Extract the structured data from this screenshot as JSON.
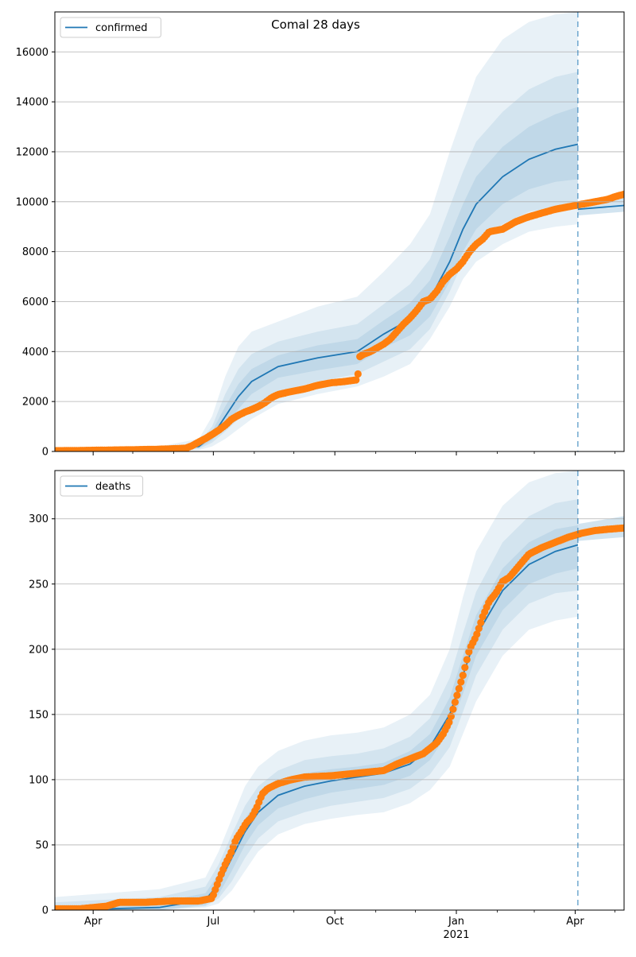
{
  "title": "Comal 28 days",
  "colors": {
    "model": "#1f77b4",
    "observed": "#ff7f0e",
    "band": "#1f77b4",
    "grid": "#b0b0b0",
    "forecast_line": "#1f77b4"
  },
  "x_axis": {
    "range_days": [
      -19,
      412
    ],
    "ticks": [
      {
        "day": 10,
        "label": "Apr",
        "sublabel": ""
      },
      {
        "day": 101,
        "label": "Jul",
        "sublabel": ""
      },
      {
        "day": 193,
        "label": "Oct",
        "sublabel": ""
      },
      {
        "day": 285,
        "label": "Jan",
        "sublabel": "2021"
      },
      {
        "day": 375,
        "label": "Apr",
        "sublabel": ""
      }
    ],
    "minor_ticks": [
      40,
      71,
      132,
      162,
      224,
      254,
      316,
      344,
      405
    ]
  },
  "chart_data": [
    {
      "type": "line",
      "series": [
        {
          "name": "confirmed"
        }
      ],
      "legend_position": "upper left",
      "grid": "horizontal",
      "ylim": [
        0,
        17600
      ],
      "yticks": [
        0,
        2000,
        4000,
        6000,
        8000,
        10000,
        12000,
        14000,
        16000
      ],
      "forecast_start_day": 377,
      "model_end_day": 377,
      "model": {
        "x": [
          -19,
          60,
          90,
          100,
          110,
          120,
          130,
          150,
          180,
          210,
          230,
          250,
          265,
          280,
          290,
          300,
          320,
          340,
          360,
          377
        ],
        "y": [
          60,
          70,
          200,
          600,
          1400,
          2200,
          2800,
          3400,
          3750,
          4000,
          4700,
          5300,
          6100,
          7600,
          8900,
          9900,
          11000,
          11700,
          12100,
          12300
        ]
      },
      "bands": [
        {
          "x": [
            -19,
            60,
            90,
            100,
            110,
            120,
            130,
            150,
            180,
            210,
            230,
            250,
            265,
            280,
            290,
            300,
            320,
            340,
            360,
            377
          ],
          "upper": [
            150,
            200,
            500,
            1400,
            3000,
            4200,
            4800,
            5200,
            5800,
            6200,
            7200,
            8300,
            9500,
            12000,
            13500,
            15000,
            16500,
            17200,
            17500,
            17600
          ],
          "lower": [
            0,
            0,
            50,
            200,
            500,
            900,
            1300,
            1900,
            2300,
            2600,
            3000,
            3500,
            4500,
            5800,
            6900,
            7600,
            8300,
            8800,
            9000,
            9100
          ]
        },
        {
          "x": [
            -19,
            60,
            90,
            100,
            110,
            120,
            130,
            150,
            180,
            210,
            230,
            250,
            265,
            280,
            290,
            300,
            320,
            340,
            360,
            377
          ],
          "upper": [
            110,
            140,
            350,
            1000,
            2300,
            3300,
            3900,
            4400,
            4800,
            5100,
            5900,
            6700,
            7700,
            9800,
            11200,
            12400,
            13600,
            14500,
            15000,
            15200
          ],
          "lower": [
            20,
            20,
            100,
            350,
            800,
            1300,
            1800,
            2400,
            2800,
            3100,
            3600,
            4100,
            4900,
            6400,
            7600,
            8400,
            9100,
            9600,
            9800,
            9900
          ]
        },
        {
          "x": [
            -19,
            60,
            90,
            100,
            110,
            120,
            130,
            150,
            180,
            210,
            230,
            250,
            265,
            280,
            290,
            300,
            320,
            340,
            360,
            377
          ],
          "upper": [
            85,
            100,
            270,
            800,
            1800,
            2700,
            3300,
            3850,
            4250,
            4500,
            5250,
            5950,
            6850,
            8600,
            9900,
            11000,
            12200,
            13000,
            13500,
            13800
          ],
          "lower": [
            40,
            40,
            140,
            450,
            1050,
            1700,
            2300,
            2950,
            3250,
            3500,
            4150,
            4650,
            5400,
            6800,
            8000,
            8900,
            9900,
            10500,
            10800,
            10900
          ]
        }
      ],
      "extension": {
        "x": [
          377,
          412
        ],
        "y": [
          9700,
          9850
        ],
        "upper": [
          9950,
          10250
        ],
        "lower": [
          9450,
          9600
        ]
      },
      "observed": {
        "x": [
          -19,
          0,
          20,
          40,
          60,
          80,
          85,
          90,
          95,
          100,
          105,
          110,
          115,
          120,
          125,
          130,
          135,
          140,
          145,
          150,
          160,
          170,
          180,
          190,
          200,
          210,
          212,
          215,
          220,
          225,
          230,
          235,
          240,
          245,
          250,
          255,
          260,
          265,
          270,
          275,
          280,
          285,
          290,
          295,
          300,
          305,
          310,
          315,
          320,
          330,
          340,
          350,
          360,
          370,
          380,
          390,
          400,
          405,
          412
        ],
        "y": [
          30,
          40,
          55,
          70,
          90,
          130,
          230,
          380,
          520,
          680,
          850,
          1050,
          1300,
          1450,
          1580,
          1680,
          1800,
          1950,
          2150,
          2280,
          2400,
          2500,
          2650,
          2750,
          2800,
          2870,
          3800,
          3900,
          4000,
          4150,
          4300,
          4500,
          4800,
          5100,
          5350,
          5650,
          6000,
          6100,
          6400,
          6800,
          7100,
          7300,
          7600,
          8000,
          8300,
          8500,
          8800,
          8850,
          8900,
          9200,
          9400,
          9550,
          9700,
          9800,
          9900,
          10000,
          10100,
          10200,
          10300
        ]
      }
    },
    {
      "type": "line",
      "series": [
        {
          "name": "deaths"
        }
      ],
      "legend_position": "upper left",
      "grid": "horizontal",
      "ylim": [
        0,
        337
      ],
      "yticks": [
        0,
        50,
        100,
        150,
        200,
        250,
        300
      ],
      "forecast_start_day": 377,
      "model_end_day": 377,
      "model": {
        "x": [
          -19,
          60,
          95,
          105,
          115,
          125,
          135,
          150,
          170,
          190,
          210,
          230,
          250,
          265,
          280,
          290,
          300,
          320,
          340,
          360,
          377
        ],
        "y": [
          0,
          2,
          8,
          20,
          40,
          60,
          75,
          88,
          95,
          99,
          102,
          105,
          112,
          125,
          150,
          180,
          210,
          245,
          265,
          275,
          280
        ]
      },
      "bands": [
        {
          "x": [
            -19,
            60,
            95,
            105,
            115,
            125,
            135,
            150,
            170,
            190,
            210,
            230,
            250,
            265,
            280,
            290,
            300,
            320,
            340,
            360,
            377
          ],
          "upper": [
            10,
            16,
            25,
            45,
            70,
            95,
            110,
            122,
            130,
            134,
            136,
            140,
            150,
            165,
            200,
            240,
            275,
            310,
            328,
            335,
            337
          ],
          "lower": [
            0,
            0,
            2,
            5,
            15,
            30,
            45,
            58,
            66,
            70,
            73,
            75,
            82,
            92,
            110,
            135,
            160,
            195,
            215,
            222,
            225
          ]
        },
        {
          "x": [
            -19,
            60,
            95,
            105,
            115,
            125,
            135,
            150,
            170,
            190,
            210,
            230,
            250,
            265,
            280,
            290,
            300,
            320,
            340,
            360,
            377
          ],
          "upper": [
            6,
            10,
            18,
            35,
            58,
            80,
            95,
            107,
            115,
            118,
            120,
            124,
            133,
            147,
            178,
            212,
            244,
            282,
            302,
            312,
            315
          ],
          "lower": [
            0,
            0,
            3,
            9,
            22,
            40,
            55,
            68,
            75,
            80,
            83,
            86,
            93,
            104,
            125,
            152,
            180,
            215,
            235,
            243,
            245
          ]
        },
        {
          "x": [
            -19,
            60,
            95,
            105,
            115,
            125,
            135,
            150,
            170,
            190,
            210,
            230,
            250,
            265,
            280,
            290,
            300,
            320,
            340,
            360,
            377
          ],
          "upper": [
            3,
            6,
            13,
            28,
            50,
            70,
            85,
            98,
            105,
            108,
            110,
            113,
            122,
            135,
            163,
            195,
            226,
            262,
            282,
            292,
            295
          ],
          "lower": [
            0,
            0,
            4,
            12,
            30,
            50,
            65,
            78,
            85,
            90,
            93,
            96,
            103,
            115,
            138,
            166,
            195,
            230,
            250,
            258,
            262
          ]
        }
      ],
      "extension": {
        "x": [
          377,
          412
        ],
        "y": [
          288,
          293
        ],
        "upper": [
          296,
          302
        ],
        "lower": [
          283,
          286
        ]
      },
      "observed": {
        "x": [
          -19,
          0,
          10,
          20,
          30,
          50,
          70,
          90,
          100,
          103,
          106,
          110,
          114,
          118,
          122,
          126,
          130,
          134,
          138,
          142,
          146,
          150,
          160,
          170,
          190,
          210,
          230,
          240,
          250,
          260,
          270,
          275,
          280,
          285,
          290,
          295,
          300,
          305,
          310,
          315,
          320,
          325,
          330,
          340,
          350,
          360,
          370,
          380,
          390,
          400,
          412
        ],
        "y": [
          1,
          1,
          2,
          3,
          6,
          6,
          7,
          7,
          9,
          17,
          25,
          35,
          43,
          54,
          60,
          67,
          71,
          79,
          89,
          93,
          95,
          97,
          100,
          102,
          103,
          105,
          107,
          112,
          116,
          120,
          128,
          135,
          145,
          163,
          180,
          200,
          210,
          225,
          237,
          243,
          252,
          255,
          261,
          273,
          278,
          282,
          286,
          289,
          291,
          292,
          293
        ]
      }
    }
  ]
}
